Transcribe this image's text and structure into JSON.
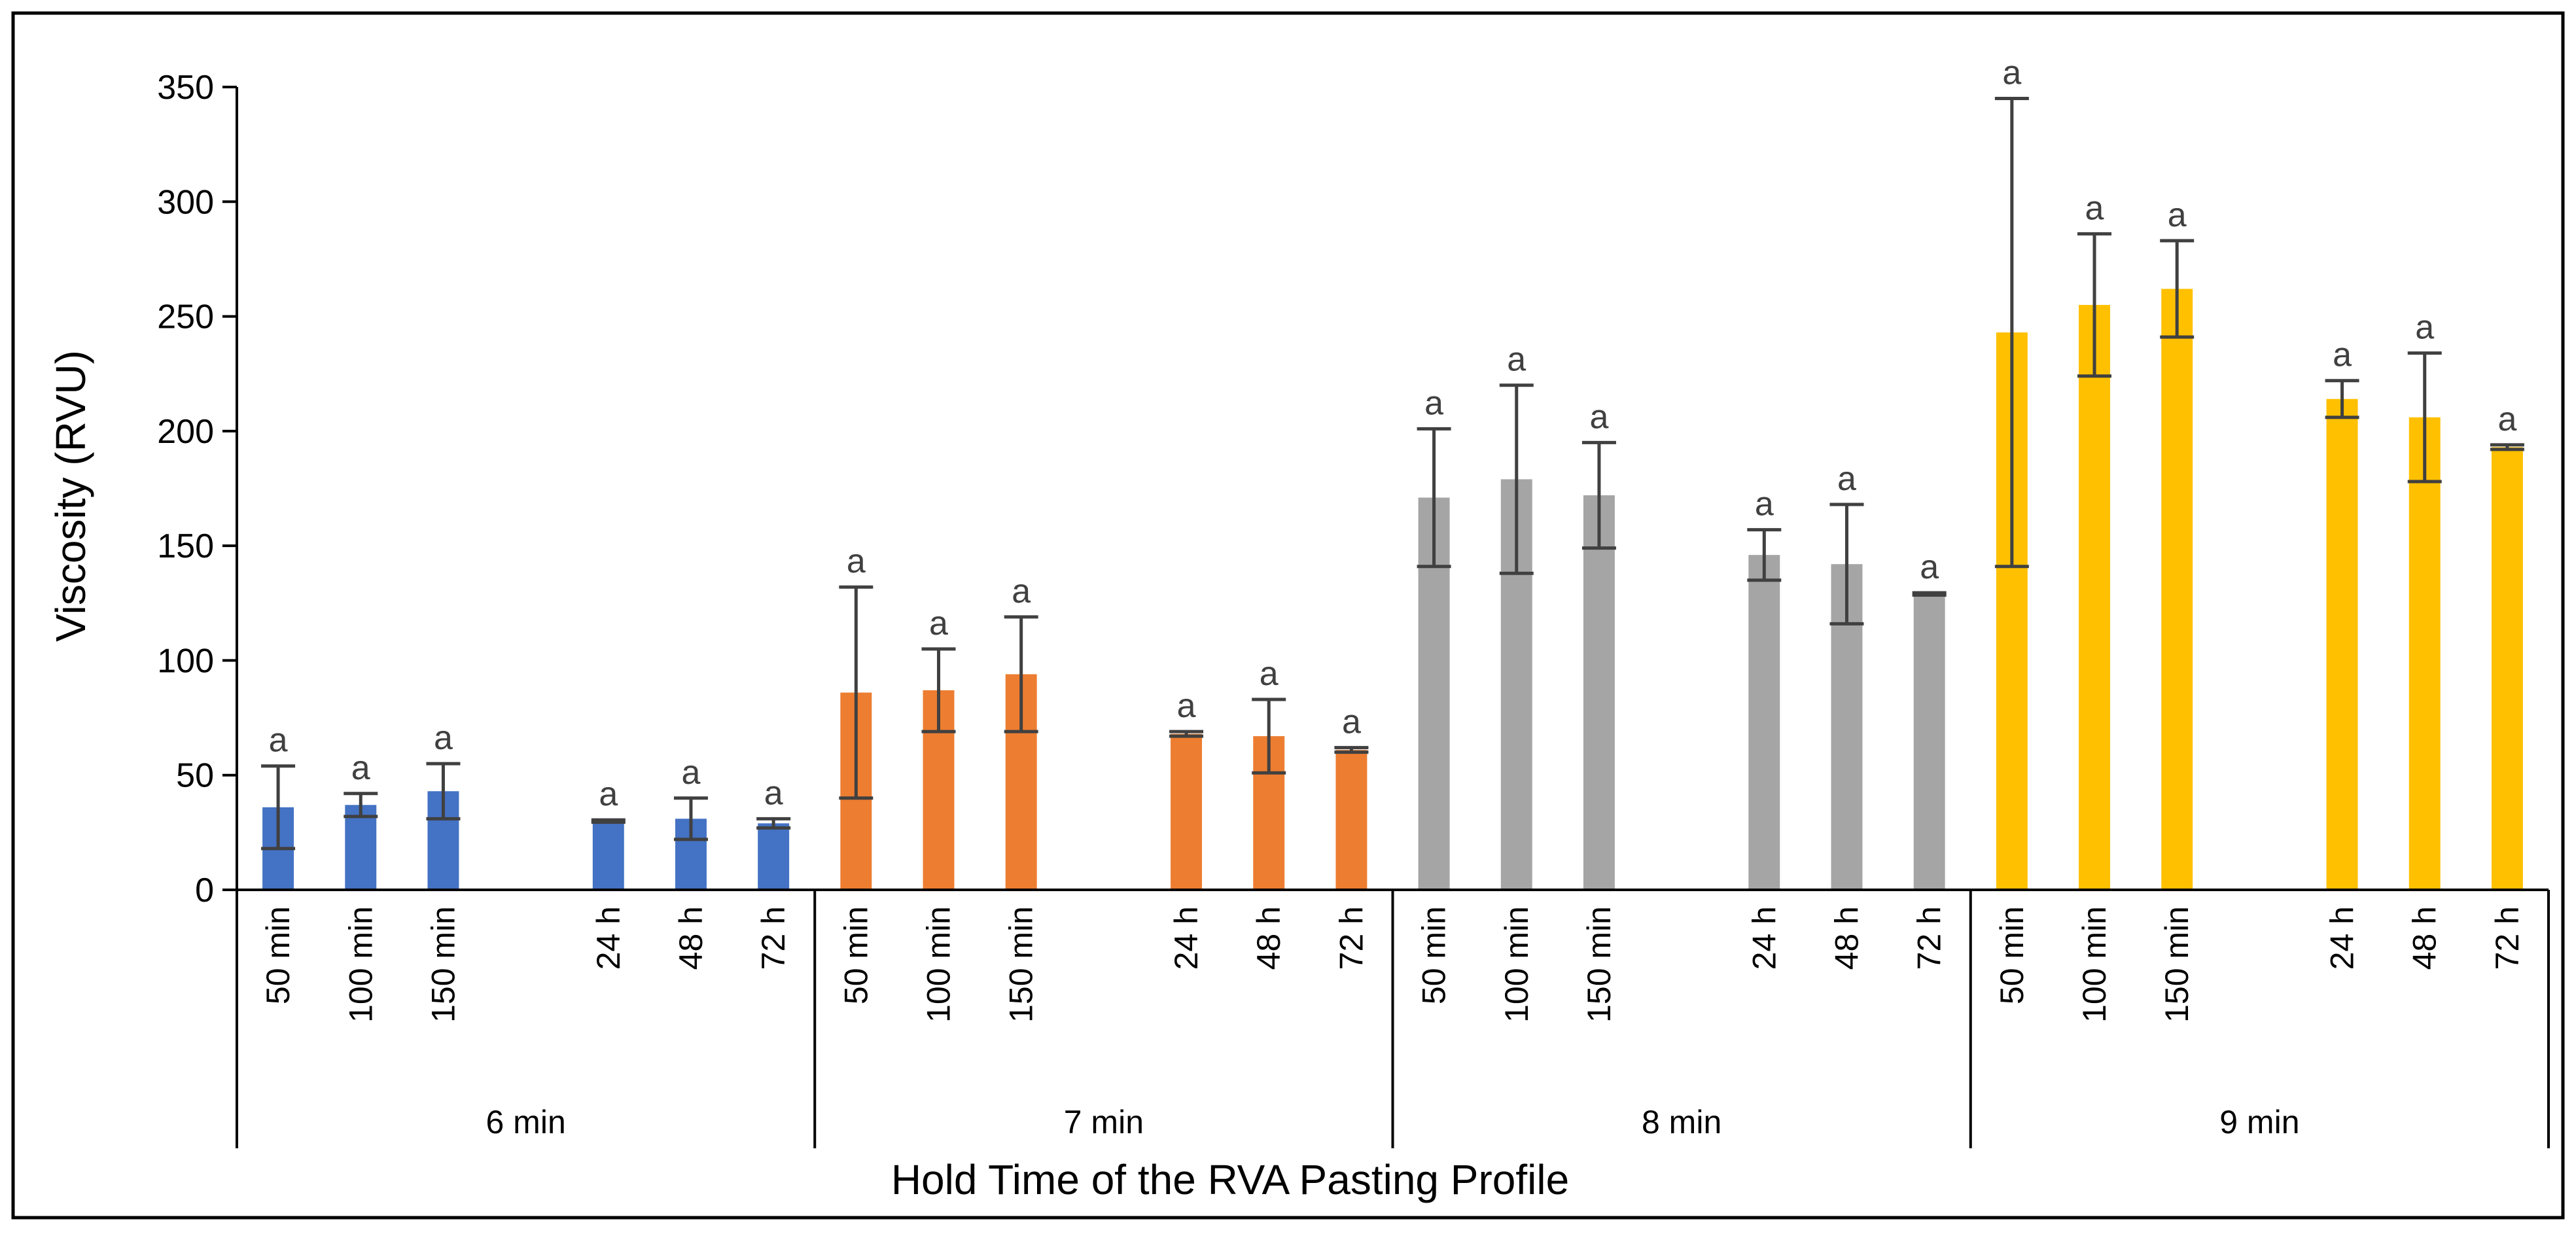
{
  "chart_data": {
    "type": "bar",
    "title": "",
    "xlabel": "Hold Time of the RVA Pasting Profile",
    "ylabel": "Viscosity (RVU)",
    "ylim": [
      0,
      350
    ],
    "yticks": [
      0,
      50,
      100,
      150,
      200,
      250,
      300,
      350
    ],
    "grid": false,
    "legend": "none",
    "groups": [
      {
        "name": "6 min",
        "color": "#4472C4",
        "categories": [
          "50 min",
          "100 min",
          "150 min",
          "24 h",
          "48 h",
          "72 h"
        ],
        "values": [
          36,
          37,
          43,
          30,
          31,
          29
        ],
        "errors": [
          18,
          5,
          12,
          0.5,
          9,
          2
        ],
        "significance": [
          "a",
          "a",
          "a",
          "a",
          "a",
          "a"
        ]
      },
      {
        "name": "7 min",
        "color": "#ED7D31",
        "categories": [
          "50 min",
          "100 min",
          "150 min",
          "24 h",
          "48 h",
          "72 h"
        ],
        "values": [
          86,
          87,
          94,
          68,
          67,
          61
        ],
        "errors": [
          46,
          18,
          25,
          1,
          16,
          1
        ],
        "significance": [
          "a",
          "a",
          "a",
          "a",
          "a",
          "a"
        ]
      },
      {
        "name": "8 min",
        "color": "#A5A5A5",
        "categories": [
          "50 min",
          "100 min",
          "150 min",
          "24 h",
          "48 h",
          "72 h"
        ],
        "values": [
          171,
          179,
          172,
          146,
          142,
          129
        ],
        "errors": [
          30,
          41,
          23,
          11,
          26,
          0.5
        ],
        "significance": [
          "a",
          "a",
          "a",
          "a",
          "a",
          "a"
        ]
      },
      {
        "name": "9 min",
        "color": "#FFC000",
        "categories": [
          "50 min",
          "100 min",
          "150 min",
          "24 h",
          "48 h",
          "72 h"
        ],
        "values": [
          243,
          255,
          262,
          214,
          206,
          193
        ],
        "errors": [
          102,
          31,
          21,
          8,
          28,
          1
        ],
        "significance": [
          "a",
          "a",
          "a",
          "a",
          "a",
          "a"
        ]
      }
    ]
  }
}
